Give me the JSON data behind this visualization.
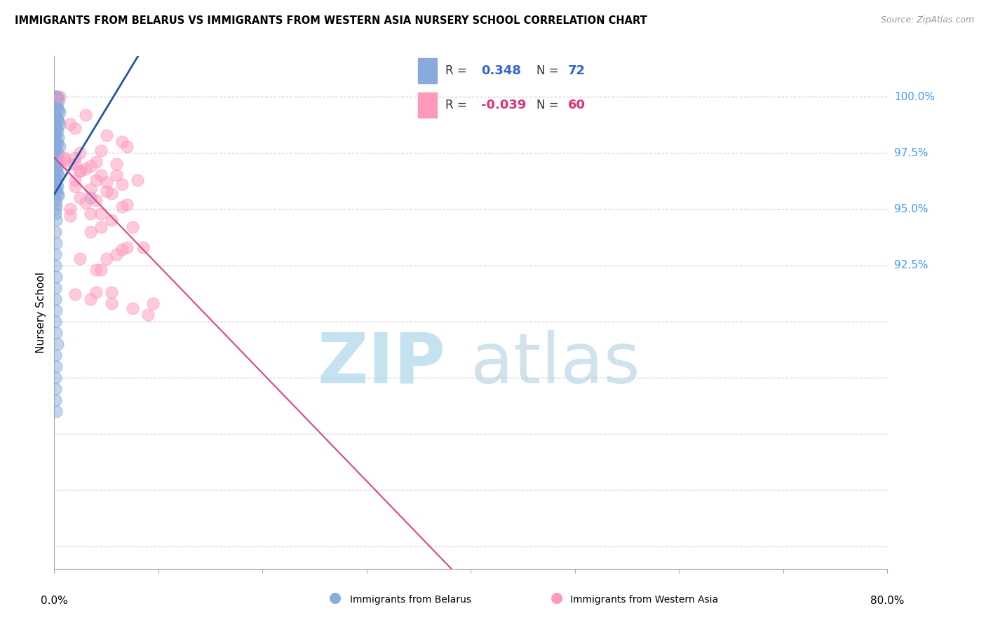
{
  "title": "IMMIGRANTS FROM BELARUS VS IMMIGRANTS FROM WESTERN ASIA NURSERY SCHOOL CORRELATION CHART",
  "source": "Source: ZipAtlas.com",
  "ylabel": "Nursery School",
  "xlim": [
    0,
    80
  ],
  "ylim": [
    79.0,
    101.8
  ],
  "ytick_vals": [
    80.0,
    82.5,
    85.0,
    87.5,
    90.0,
    92.5,
    95.0,
    97.5,
    100.0
  ],
  "ytick_display": [
    92.5,
    95.0,
    97.5,
    100.0
  ],
  "legend_R_blue": "0.348",
  "legend_N_blue": "72",
  "legend_R_pink": "-0.039",
  "legend_N_pink": "60",
  "blue_color": "#88AADD",
  "pink_color": "#FF99BB",
  "trendline_blue_color": "#2255AA",
  "trendline_pink_color": "#DD4488",
  "grid_color": "#CCCCCC",
  "axis_color": "#AAAAAA",
  "blue_scatter_x": [
    0.1,
    0.2,
    0.3,
    0.1,
    0.2,
    0.3,
    0.4,
    0.1,
    0.2,
    0.3,
    0.4,
    0.5,
    0.1,
    0.2,
    0.3,
    0.4,
    0.5,
    0.1,
    0.2,
    0.3,
    0.1,
    0.2,
    0.4,
    0.1,
    0.2,
    0.3,
    0.5,
    0.1,
    0.2,
    0.3,
    0.1,
    0.2,
    0.4,
    0.1,
    0.2,
    0.3,
    0.1,
    0.2,
    0.3,
    0.4,
    0.1,
    0.2,
    0.1,
    0.2,
    0.3,
    0.1,
    0.2,
    0.3,
    0.4,
    3.5,
    0.1,
    0.2,
    0.1,
    0.1,
    0.2,
    0.1,
    0.2,
    0.1,
    0.1,
    0.2,
    0.1,
    0.1,
    0.2,
    0.1,
    0.2,
    0.3,
    0.1,
    0.2,
    0.1,
    0.1,
    0.1,
    0.2
  ],
  "blue_scatter_y": [
    100.0,
    100.0,
    100.0,
    100.0,
    100.0,
    99.9,
    99.8,
    99.7,
    99.6,
    99.5,
    99.4,
    99.3,
    99.2,
    99.1,
    99.0,
    98.9,
    98.8,
    98.7,
    98.6,
    98.5,
    98.4,
    98.3,
    98.2,
    98.1,
    98.0,
    97.9,
    97.8,
    97.7,
    97.6,
    97.5,
    97.4,
    97.3,
    97.2,
    97.1,
    97.0,
    96.9,
    96.8,
    96.7,
    96.6,
    96.5,
    96.4,
    96.3,
    96.2,
    96.1,
    96.0,
    95.9,
    95.8,
    95.7,
    95.6,
    95.5,
    95.4,
    95.2,
    95.0,
    94.8,
    94.5,
    94.0,
    93.5,
    93.0,
    92.5,
    92.0,
    91.5,
    91.0,
    90.5,
    90.0,
    89.5,
    89.0,
    88.5,
    88.0,
    87.5,
    87.0,
    86.5,
    86.0
  ],
  "pink_scatter_x": [
    0.5,
    3.0,
    1.5,
    2.0,
    5.0,
    6.5,
    7.0,
    4.5,
    2.5,
    2.0,
    4.0,
    3.5,
    2.5,
    6.0,
    4.0,
    1.5,
    3.0,
    1.0,
    2.0,
    5.0,
    3.5,
    5.5,
    2.0,
    7.0,
    5.0,
    2.5,
    3.0,
    6.5,
    4.0,
    2.0,
    1.0,
    2.5,
    4.5,
    6.0,
    6.5,
    8.0,
    3.5,
    1.5,
    4.5,
    5.5,
    7.5,
    3.5,
    1.5,
    4.5,
    6.5,
    8.5,
    2.5,
    5.0,
    6.0,
    7.0,
    4.0,
    4.0,
    5.5,
    2.0,
    9.5,
    3.5,
    5.5,
    7.5,
    4.5,
    9.0
  ],
  "pink_scatter_y": [
    100.0,
    99.2,
    98.8,
    98.6,
    98.3,
    98.0,
    97.8,
    97.6,
    97.5,
    97.3,
    97.1,
    96.9,
    96.7,
    96.5,
    96.3,
    97.0,
    96.8,
    97.3,
    96.3,
    96.2,
    95.9,
    95.7,
    96.0,
    95.2,
    95.8,
    95.5,
    95.3,
    95.1,
    95.4,
    97.0,
    97.2,
    96.7,
    96.5,
    97.0,
    96.1,
    96.3,
    94.8,
    95.0,
    94.8,
    94.5,
    94.2,
    94.0,
    94.7,
    94.2,
    93.2,
    93.3,
    92.8,
    92.8,
    93.0,
    93.3,
    92.3,
    91.3,
    91.3,
    91.2,
    90.8,
    91.0,
    90.8,
    90.6,
    92.3,
    90.3
  ]
}
